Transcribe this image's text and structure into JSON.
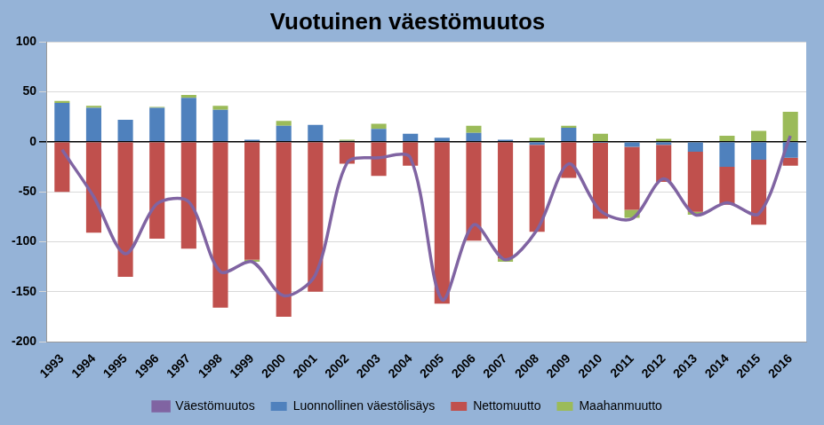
{
  "chart_data": {
    "type": "bar",
    "title": "Vuotuinen väestömuutos",
    "categories": [
      "1993",
      "1994",
      "1995",
      "1996",
      "1997",
      "1998",
      "1999",
      "2000",
      "2001",
      "2002",
      "2003",
      "2004",
      "2005",
      "2006",
      "2007",
      "2008",
      "2009",
      "2010",
      "2011",
      "2012",
      "2013",
      "2014",
      "2015",
      "2016"
    ],
    "series": [
      {
        "name": "Luonnollinen väestölisäys",
        "color": "#4f81bd",
        "type": "bar",
        "values": [
          39,
          34,
          22,
          34,
          44,
          32,
          2,
          16,
          17,
          1,
          13,
          8,
          4,
          9,
          2,
          -3,
          14,
          -1,
          -5,
          -3,
          -10,
          -25,
          -18,
          -16
        ]
      },
      {
        "name": "Nettomuutto",
        "color": "#c0504d",
        "type": "bar",
        "values": [
          -50,
          -91,
          -135,
          -97,
          -107,
          -166,
          -118,
          -175,
          -150,
          -22,
          -34,
          -24,
          -162,
          -99,
          -117,
          -87,
          -36,
          -76,
          -63,
          -37,
          -60,
          -38,
          -65,
          -8
        ]
      },
      {
        "name": "Maahanmuutto",
        "color": "#9bbb59",
        "type": "bar",
        "values": [
          2,
          2,
          0,
          1,
          3,
          4,
          -2,
          5,
          0,
          1,
          5,
          0,
          0,
          7,
          -3,
          4,
          2,
          8,
          -8,
          3,
          -3,
          6,
          11,
          30
        ]
      },
      {
        "name": "Väestömuutos",
        "color": "#8064a2",
        "type": "line",
        "values": [
          -8,
          -55,
          -112,
          -62,
          -60,
          -130,
          -120,
          -154,
          -133,
          -21,
          -16,
          -16,
          -158,
          -83,
          -118,
          -88,
          -22,
          -69,
          -77,
          -37,
          -73,
          -61,
          -72,
          6
        ]
      }
    ],
    "stacked": true,
    "ylim": [
      -200,
      100
    ],
    "yticks": [
      -200,
      -150,
      -100,
      -50,
      0,
      50,
      100
    ],
    "grid": true,
    "legend": "bottom"
  }
}
